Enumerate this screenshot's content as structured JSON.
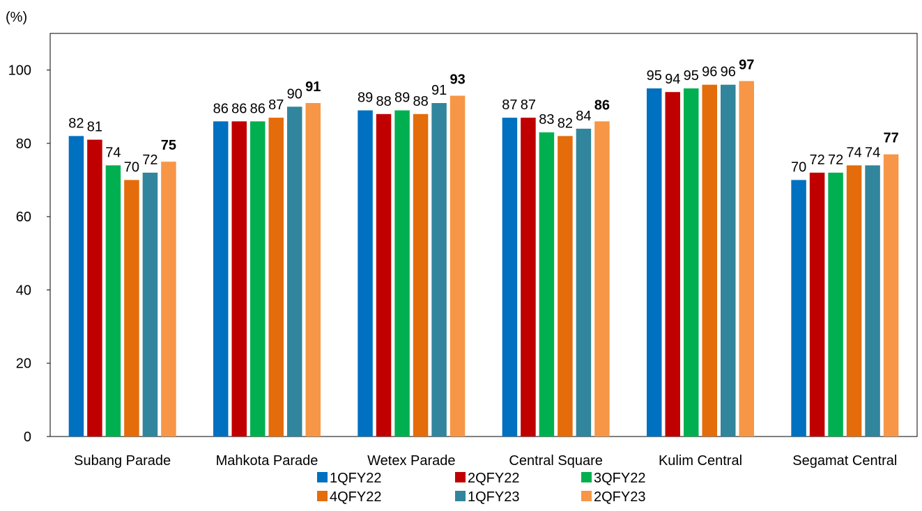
{
  "chart_data": {
    "type": "bar",
    "unit_label": "(%)",
    "categories": [
      "Subang Parade",
      "Mahkota Parade",
      "Wetex Parade",
      "Central Square",
      "Kulim Central",
      "Segamat Central"
    ],
    "series": [
      {
        "name": "1QFY22",
        "color": "#0070C0",
        "values": [
          82,
          86,
          89,
          87,
          95,
          70
        ]
      },
      {
        "name": "2QFY22",
        "color": "#C00000",
        "values": [
          81,
          86,
          88,
          87,
          94,
          72
        ]
      },
      {
        "name": "3QFY22",
        "color": "#00B050",
        "values": [
          74,
          86,
          89,
          83,
          95,
          72
        ]
      },
      {
        "name": "4QFY22",
        "color": "#E46C0A",
        "values": [
          70,
          87,
          88,
          82,
          96,
          74
        ]
      },
      {
        "name": "1QFY23",
        "color": "#31859C",
        "values": [
          72,
          90,
          91,
          84,
          96,
          74
        ]
      },
      {
        "name": "2QFY23",
        "color": "#F79646",
        "values": [
          75,
          91,
          93,
          86,
          97,
          77
        ]
      }
    ],
    "highlight_series": "2QFY23",
    "ylim": [
      0,
      110
    ],
    "yticks": [
      0,
      20,
      40,
      60,
      80,
      100
    ],
    "grid": false,
    "legend_position": "bottom"
  }
}
